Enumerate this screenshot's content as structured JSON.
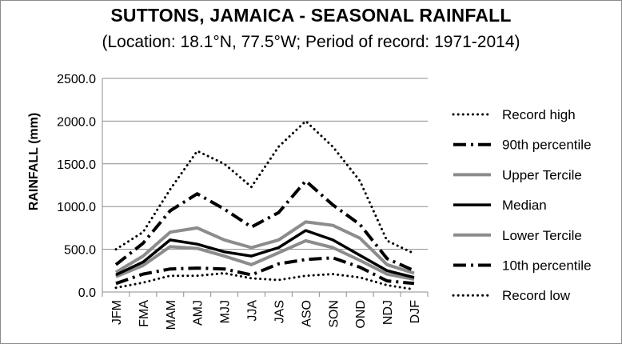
{
  "chart_data": {
    "type": "line",
    "title": "SUTTONS, JAMAICA - SEASONAL RAINFALL",
    "subtitle": "(Location: 18.1°N, 77.5°W; Period of record: 1971-2014)",
    "xlabel": "",
    "ylabel": "RAINFALL (mm)",
    "ylim": [
      0,
      2500
    ],
    "yticks": [
      "0.0",
      "500.0",
      "1000.0",
      "1500.0",
      "2000.0",
      "2500.0"
    ],
    "yticks_values": [
      0,
      500,
      1000,
      1500,
      2000,
      2500
    ],
    "grid": true,
    "legend_position": "right",
    "categories": [
      "JFM",
      "FMA",
      "MAM",
      "AMJ",
      "MJJ",
      "JJA",
      "JAS",
      "ASO",
      "SON",
      "OND",
      "NDJ",
      "DJF"
    ],
    "series": [
      {
        "name": "Record high",
        "style": "dotted",
        "color": "#000000",
        "values": [
          500,
          700,
          1200,
          1650,
          1500,
          1230,
          1700,
          2000,
          1700,
          1300,
          600,
          450
        ]
      },
      {
        "name": "90th percentile",
        "style": "dashdot",
        "color": "#000000",
        "values": [
          320,
          570,
          950,
          1150,
          970,
          760,
          930,
          1300,
          1020,
          790,
          390,
          250
        ]
      },
      {
        "name": "Upper Tercile",
        "style": "solid",
        "color": "#8c8c8c",
        "values": [
          230,
          420,
          700,
          750,
          610,
          520,
          610,
          820,
          780,
          630,
          320,
          220
        ]
      },
      {
        "name": "Median",
        "style": "solid",
        "color": "#000000",
        "values": [
          200,
          350,
          610,
          560,
          470,
          420,
          520,
          720,
          610,
          430,
          250,
          170
        ]
      },
      {
        "name": "Lower Tercile",
        "style": "solid",
        "color": "#8c8c8c",
        "values": [
          180,
          310,
          530,
          510,
          420,
          320,
          460,
          600,
          520,
          370,
          210,
          150
        ]
      },
      {
        "name": "10th percentile",
        "style": "dashdot",
        "color": "#000000",
        "values": [
          100,
          210,
          270,
          280,
          270,
          200,
          330,
          380,
          400,
          290,
          130,
          100
        ]
      },
      {
        "name": "Record low",
        "style": "dotted",
        "color": "#000000",
        "values": [
          50,
          110,
          190,
          190,
          220,
          160,
          140,
          190,
          210,
          170,
          80,
          30
        ]
      }
    ]
  }
}
